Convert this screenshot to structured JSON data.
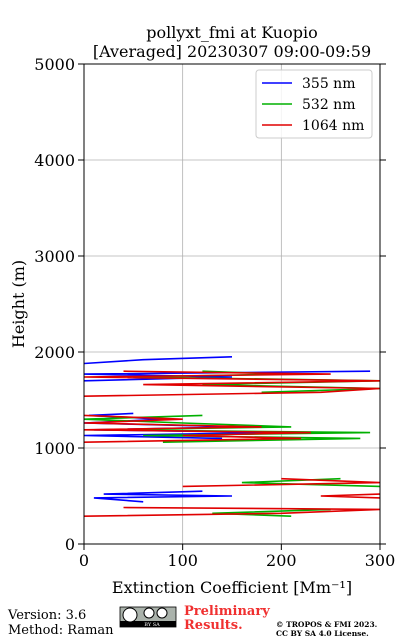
{
  "chart_data": {
    "type": "profile",
    "title": "pollyxt_fmi at Kuopio",
    "subtitle": "[Averaged] 20230307 09:00-09:59",
    "xlabel": "Extinction Coefficient [Mm⁻¹]",
    "ylabel": "Height (m)",
    "xlim": [
      0,
      300
    ],
    "xticks": [
      0,
      100,
      200,
      300
    ],
    "ylim": [
      0,
      5000
    ],
    "yticks": [
      0,
      1000,
      2000,
      3000,
      4000,
      5000
    ],
    "grid": true,
    "legend": "upper right",
    "heights": [
      290,
      320,
      360,
      380,
      440,
      480,
      500,
      520,
      550,
      600,
      640,
      680,
      700,
      730,
      900,
      1060,
      1100,
      1130,
      1160,
      1190,
      1220,
      1260,
      1300,
      1340,
      1360,
      1540,
      1580,
      1620,
      1660,
      1700,
      1740,
      1770,
      1800,
      1830,
      1880,
      1920,
      1950
    ],
    "series": [
      {
        "name": "355 nm",
        "color": "#0000ff",
        "values": [
          null,
          null,
          null,
          null,
          60,
          10,
          150,
          20,
          120,
          null,
          null,
          null,
          null,
          null,
          null,
          null,
          140,
          0,
          200,
          10,
          160,
          0,
          80,
          5,
          50,
          null,
          null,
          null,
          null,
          0,
          150,
          0,
          290,
          null,
          0,
          60,
          150
        ]
      },
      {
        "name": "532 nm",
        "color": "#00b000",
        "values": [
          210,
          130,
          250,
          null,
          null,
          null,
          null,
          null,
          null,
          300,
          160,
          260,
          null,
          null,
          null,
          80,
          280,
          60,
          290,
          20,
          210,
          100,
          0,
          120,
          null,
          null,
          180,
          300,
          120,
          300,
          50,
          200,
          120,
          null,
          null,
          null,
          null
        ]
      },
      {
        "name": "1064 nm",
        "color": "#e00000",
        "values": [
          0,
          200,
          300,
          40,
          null,
          300,
          240,
          300,
          null,
          100,
          300,
          200,
          null,
          0,
          null,
          0,
          220,
          100,
          230,
          0,
          180,
          0,
          100,
          0,
          null,
          0,
          240,
          300,
          60,
          300,
          0,
          250,
          40,
          null,
          null,
          null,
          null
        ]
      }
    ]
  },
  "footer": {
    "version": "Version: 3.6",
    "method": "Method: Raman",
    "badge": "BY SA",
    "preliminary": [
      "Preliminary",
      "Results."
    ],
    "copyright": [
      "© TROPOS & FMI 2023.",
      "CC BY SA 4.0 License."
    ]
  }
}
